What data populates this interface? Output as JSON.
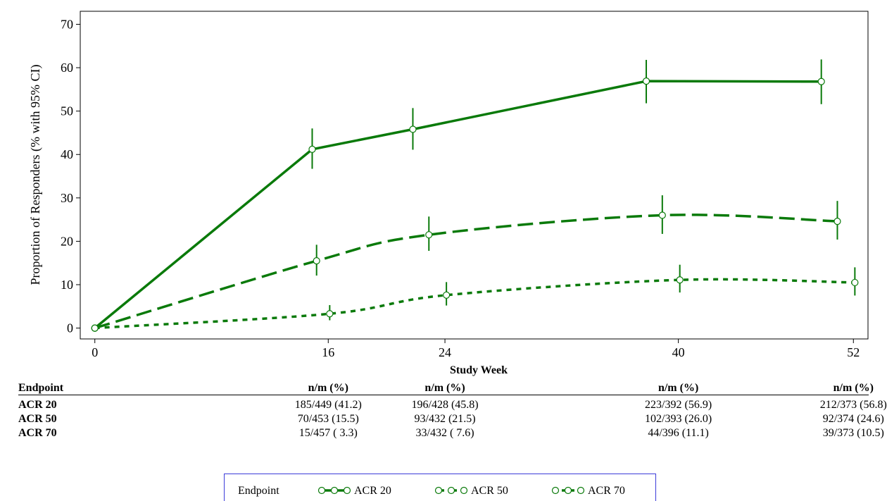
{
  "chart_data": {
    "type": "line",
    "xlabel": "Study Week",
    "ylabel": "Proportion of Responders (% with 95% CI)",
    "xlim": [
      -1,
      53
    ],
    "ylim": [
      -2.5,
      73
    ],
    "xticks": [
      0,
      16,
      24,
      40,
      52
    ],
    "yticks": [
      0,
      10,
      20,
      30,
      40,
      50,
      60,
      70
    ],
    "colors": {
      "line": "#0a7a0a",
      "marker": "#0a7a0a"
    },
    "series": [
      {
        "name": "ACR 20",
        "style": "solid",
        "points": [
          {
            "x": 0,
            "y": 0,
            "lo": 0,
            "hi": 0
          },
          {
            "x": 14.9,
            "y": 41.2,
            "lo": 36.7,
            "hi": 46.0
          },
          {
            "x": 21.8,
            "y": 45.8,
            "lo": 41.1,
            "hi": 50.7
          },
          {
            "x": 37.8,
            "y": 56.9,
            "lo": 51.8,
            "hi": 61.8
          },
          {
            "x": 49.8,
            "y": 56.8,
            "lo": 51.6,
            "hi": 61.9
          }
        ]
      },
      {
        "name": "ACR 50",
        "style": "dashed",
        "points": [
          {
            "x": 0,
            "y": 0,
            "lo": 0,
            "hi": 0
          },
          {
            "x": 15.2,
            "y": 15.5,
            "lo": 12.1,
            "hi": 19.2
          },
          {
            "x": 22.9,
            "y": 21.5,
            "lo": 17.8,
            "hi": 25.7
          },
          {
            "x": 38.9,
            "y": 26.0,
            "lo": 21.7,
            "hi": 30.6
          },
          {
            "x": 50.9,
            "y": 24.6,
            "lo": 20.4,
            "hi": 29.3
          }
        ]
      },
      {
        "name": "ACR 70",
        "style": "dotted",
        "points": [
          {
            "x": 0,
            "y": 0,
            "lo": 0,
            "hi": 0
          },
          {
            "x": 16.1,
            "y": 3.3,
            "lo": 1.8,
            "hi": 5.3
          },
          {
            "x": 24.1,
            "y": 7.6,
            "lo": 5.2,
            "hi": 10.6
          },
          {
            "x": 40.1,
            "y": 11.1,
            "lo": 8.2,
            "hi": 14.6
          },
          {
            "x": 52.1,
            "y": 10.5,
            "lo": 7.5,
            "hi": 14.0
          }
        ]
      }
    ],
    "legend": {
      "title": "Endpoint",
      "position": "bottom",
      "items": [
        "ACR 20",
        "ACR 50",
        "ACR 70"
      ]
    }
  },
  "table": {
    "endpoint_header": "Endpoint",
    "col_header": "n/m (%)",
    "columns_at_x": [
      16,
      24,
      40,
      52
    ],
    "rows": [
      {
        "label": "ACR 20",
        "values": [
          "185/449 (41.2)",
          "196/428 (45.8)",
          "223/392 (56.9)",
          "212/373 (56.8)"
        ]
      },
      {
        "label": "ACR 50",
        "values": [
          "70/453 (15.5)",
          "93/432 (21.5)",
          "102/393 (26.0)",
          "92/374 (24.6)"
        ]
      },
      {
        "label": "ACR 70",
        "values": [
          "15/457 ( 3.3)",
          "33/432 ( 7.6)",
          "44/396 (11.1)",
          "39/373 (10.5)"
        ]
      }
    ]
  }
}
